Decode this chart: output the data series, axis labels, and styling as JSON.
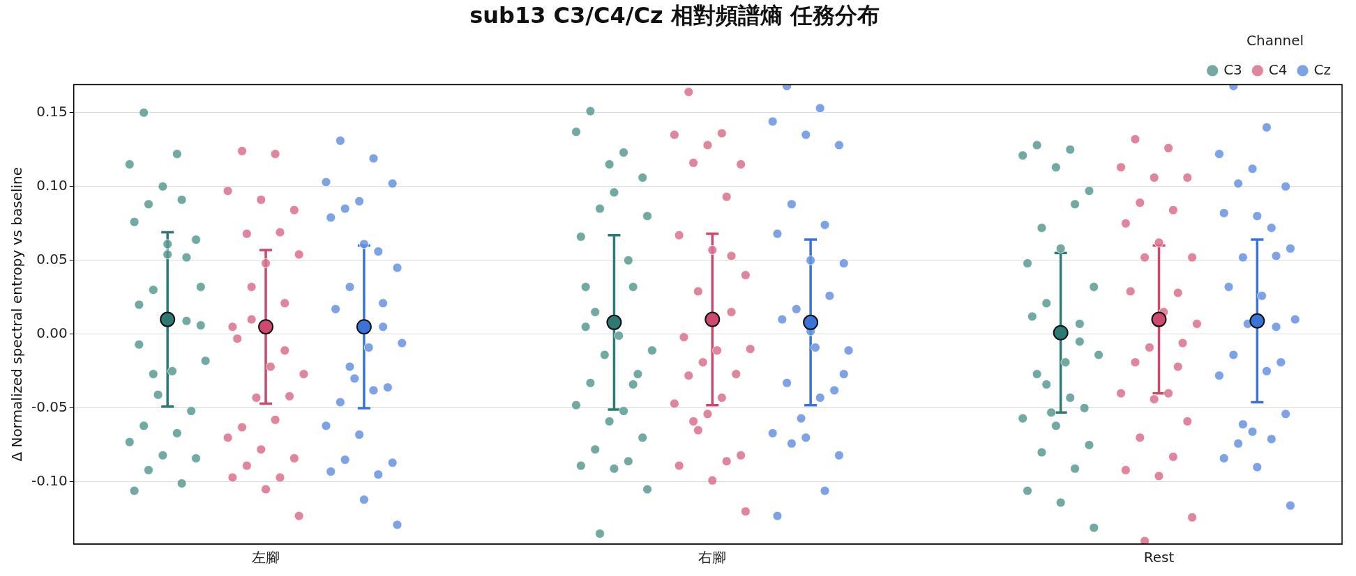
{
  "chart_data": {
    "type": "scatter",
    "title": "sub13 C3/C4/Cz 相對頻譜熵 任務分布",
    "ylabel": "Δ Normalized spectral entropy vs baseline",
    "legend_title": "Channel",
    "legend": "top right",
    "grid": "y",
    "marker": "circle",
    "categories": [
      "左腳",
      "右腳",
      "Rest"
    ],
    "ylim": [
      -0.142,
      0.169
    ],
    "yticks": [
      {
        "value": -0.1,
        "label": "-0.10"
      },
      {
        "value": -0.05,
        "label": "-0.05"
      },
      {
        "value": 0,
        "label": "0.00"
      },
      {
        "value": 0.05,
        "label": "0.05"
      },
      {
        "value": 0.1,
        "label": "0.10"
      },
      {
        "value": 0.15,
        "label": "0.15"
      }
    ],
    "series": [
      {
        "name": "C3",
        "color": "#5b9a93",
        "x": [
          "左腳",
          "左腳",
          "左腳",
          "左腳",
          "左腳",
          "左腳",
          "左腳",
          "左腳",
          "左腳",
          "左腳",
          "左腳",
          "左腳",
          "左腳",
          "左腳",
          "左腳",
          "左腳",
          "左腳",
          "左腳",
          "左腳",
          "左腳",
          "左腳",
          "左腳",
          "左腳",
          "左腳",
          "左腳",
          "左腳",
          "左腳",
          "左腳",
          "左腳",
          "左腳",
          "右腳",
          "右腳",
          "右腳",
          "右腳",
          "右腳",
          "右腳",
          "右腳",
          "右腳",
          "右腳",
          "右腳",
          "右腳",
          "右腳",
          "右腳",
          "右腳",
          "右腳",
          "右腳",
          "右腳",
          "右腳",
          "右腳",
          "右腳",
          "右腳",
          "右腳",
          "右腳",
          "右腳",
          "右腳",
          "右腳",
          "右腳",
          "右腳",
          "右腳",
          "右腳",
          "Rest",
          "Rest",
          "Rest",
          "Rest",
          "Rest",
          "Rest",
          "Rest",
          "Rest",
          "Rest",
          "Rest",
          "Rest",
          "Rest",
          "Rest",
          "Rest",
          "Rest",
          "Rest",
          "Rest",
          "Rest",
          "Rest",
          "Rest",
          "Rest",
          "Rest",
          "Rest",
          "Rest",
          "Rest",
          "Rest",
          "Rest",
          "Rest",
          "Rest"
        ],
        "values": [
          0.15,
          0.122,
          0.115,
          0.1,
          0.064,
          0.088,
          0.091,
          0.076,
          0.054,
          0.032,
          0.03,
          0.009,
          -0.007,
          -0.025,
          -0.018,
          -0.041,
          -0.052,
          -0.062,
          -0.067,
          -0.073,
          -0.082,
          -0.084,
          -0.092,
          -0.101,
          -0.106,
          0.061,
          0.006,
          -0.027,
          0.052,
          0.02,
          0.151,
          0.123,
          0.137,
          0.115,
          0.106,
          0.015,
          0.05,
          0.066,
          0.096,
          0.08,
          0.085,
          0.032,
          0.005,
          -0.001,
          -0.011,
          -0.014,
          -0.027,
          -0.033,
          -0.052,
          -0.048,
          -0.059,
          -0.07,
          -0.078,
          -0.086,
          -0.089,
          -0.091,
          -0.105,
          -0.135,
          -0.034,
          0.032,
          0.128,
          0.125,
          0.121,
          0.113,
          0.097,
          0.072,
          0.088,
          0.048,
          0.058,
          0.032,
          0.021,
          0.007,
          0.012,
          -0.019,
          -0.014,
          -0.053,
          -0.05,
          -0.027,
          -0.043,
          -0.057,
          -0.062,
          -0.075,
          -0.08,
          -0.091,
          -0.106,
          -0.114,
          -0.131,
          -0.034,
          -0.005
        ]
      },
      {
        "name": "C4",
        "color": "#d9708c",
        "x": [
          "左腳",
          "左腳",
          "左腳",
          "左腳",
          "左腳",
          "左腳",
          "左腳",
          "左腳",
          "左腳",
          "左腳",
          "左腳",
          "左腳",
          "左腳",
          "左腳",
          "左腳",
          "左腳",
          "左腳",
          "左腳",
          "左腳",
          "左腳",
          "左腳",
          "左腳",
          "左腳",
          "左腳",
          "左腳",
          "左腳",
          "左腳",
          "左腳",
          "左腳",
          "右腳",
          "右腳",
          "右腳",
          "右腳",
          "右腳",
          "右腳",
          "右腳",
          "右腳",
          "右腳",
          "右腳",
          "右腳",
          "右腳",
          "右腳",
          "右腳",
          "右腳",
          "右腳",
          "右腳",
          "右腳",
          "右腳",
          "右腳",
          "右腳",
          "右腳",
          "右腳",
          "右腳",
          "右腳",
          "右腳",
          "右腳",
          "右腳",
          "右腳",
          "Rest",
          "Rest",
          "Rest",
          "Rest",
          "Rest",
          "Rest",
          "Rest",
          "Rest",
          "Rest",
          "Rest",
          "Rest",
          "Rest",
          "Rest",
          "Rest",
          "Rest",
          "Rest",
          "Rest",
          "Rest",
          "Rest",
          "Rest",
          "Rest",
          "Rest",
          "Rest",
          "Rest",
          "Rest",
          "Rest",
          "Rest",
          "Rest",
          "Rest"
        ],
        "values": [
          0.124,
          0.122,
          0.097,
          0.091,
          0.084,
          0.068,
          0.069,
          0.005,
          0.048,
          0.054,
          0.032,
          0.021,
          -0.003,
          -0.022,
          -0.027,
          -0.043,
          -0.042,
          -0.063,
          -0.058,
          -0.07,
          -0.078,
          -0.084,
          -0.089,
          -0.097,
          -0.097,
          -0.105,
          -0.123,
          0.01,
          -0.011,
          0.164,
          0.136,
          0.135,
          0.128,
          0.115,
          0.116,
          0.093,
          0.067,
          0.057,
          0.04,
          0.029,
          0.015,
          -0.002,
          -0.011,
          -0.01,
          -0.019,
          -0.027,
          -0.028,
          -0.043,
          -0.047,
          -0.054,
          -0.082,
          -0.059,
          -0.086,
          -0.089,
          -0.099,
          -0.12,
          -0.065,
          0.053,
          0.132,
          0.126,
          0.113,
          0.106,
          0.106,
          0.089,
          0.084,
          0.075,
          0.062,
          0.052,
          0.052,
          0.028,
          0.029,
          0.015,
          0.007,
          -0.009,
          -0.006,
          -0.019,
          -0.04,
          -0.04,
          -0.044,
          -0.059,
          -0.07,
          -0.083,
          -0.092,
          -0.096,
          -0.124,
          -0.14,
          -0.022
        ]
      },
      {
        "name": "Cz",
        "color": "#6693e0",
        "x": [
          "左腳",
          "左腳",
          "左腳",
          "左腳",
          "左腳",
          "左腳",
          "左腳",
          "左腳",
          "左腳",
          "左腳",
          "左腳",
          "左腳",
          "左腳",
          "左腳",
          "左腳",
          "左腳",
          "左腳",
          "左腳",
          "左腳",
          "左腳",
          "左腳",
          "左腳",
          "左腳",
          "左腳",
          "左腳",
          "左腳",
          "左腳",
          "左腳",
          "左腳",
          "右腳",
          "右腳",
          "右腳",
          "右腳",
          "右腳",
          "右腳",
          "右腳",
          "右腳",
          "右腳",
          "右腳",
          "右腳",
          "右腳",
          "右腳",
          "右腳",
          "右腳",
          "右腳",
          "右腳",
          "右腳",
          "右腳",
          "右腳",
          "右腳",
          "右腳",
          "右腳",
          "右腳",
          "右腳",
          "右腳",
          "右腳",
          "Rest",
          "Rest",
          "Rest",
          "Rest",
          "Rest",
          "Rest",
          "Rest",
          "Rest",
          "Rest",
          "Rest",
          "Rest",
          "Rest",
          "Rest",
          "Rest",
          "Rest",
          "Rest",
          "Rest",
          "Rest",
          "Rest",
          "Rest",
          "Rest",
          "Rest",
          "Rest",
          "Rest",
          "Rest",
          "Rest",
          "Rest",
          "Rest",
          "Rest"
        ],
        "values": [
          0.131,
          0.119,
          0.103,
          0.09,
          0.102,
          0.085,
          0.056,
          0.079,
          0.061,
          0.045,
          0.032,
          0.021,
          0.017,
          -0.009,
          -0.006,
          -0.03,
          -0.036,
          -0.046,
          -0.038,
          -0.062,
          -0.068,
          -0.087,
          -0.085,
          -0.095,
          -0.093,
          -0.112,
          -0.129,
          -0.022,
          0.005,
          0.168,
          0.153,
          0.144,
          0.135,
          0.128,
          0.088,
          0.074,
          0.068,
          0.05,
          0.048,
          0.017,
          0.026,
          0.01,
          -0.009,
          -0.011,
          -0.057,
          -0.038,
          -0.033,
          -0.043,
          -0.067,
          -0.07,
          -0.082,
          -0.074,
          -0.106,
          -0.123,
          0.002,
          -0.027,
          0.168,
          0.14,
          0.122,
          0.112,
          0.1,
          0.102,
          0.072,
          0.082,
          0.08,
          0.058,
          0.052,
          0.053,
          0.032,
          0.026,
          0.01,
          0.007,
          -0.019,
          -0.014,
          -0.025,
          -0.028,
          -0.066,
          -0.054,
          -0.074,
          -0.071,
          -0.084,
          -0.09,
          -0.116,
          -0.061,
          0.005
        ]
      },
      {
        "color": "#2e7a72",
        "x": [
          "左腳",
          "右腳",
          "Rest"
        ],
        "values": [
          0.01,
          0.008,
          0.001
        ],
        "errors": [
          0.059,
          0.059,
          0.054
        ]
      },
      {
        "color": "#cc4a6e",
        "x": [
          "左腳",
          "右腳",
          "Rest"
        ],
        "values": [
          0.005,
          0.01,
          0.01
        ],
        "errors": [
          0.052,
          0.058,
          0.05
        ]
      },
      {
        "color": "#3a74d8",
        "x": [
          "左腳",
          "右腳",
          "Rest"
        ],
        "values": [
          0.005,
          0.008,
          0.009
        ],
        "errors": [
          0.055,
          0.056,
          0.055
        ]
      }
    ]
  }
}
